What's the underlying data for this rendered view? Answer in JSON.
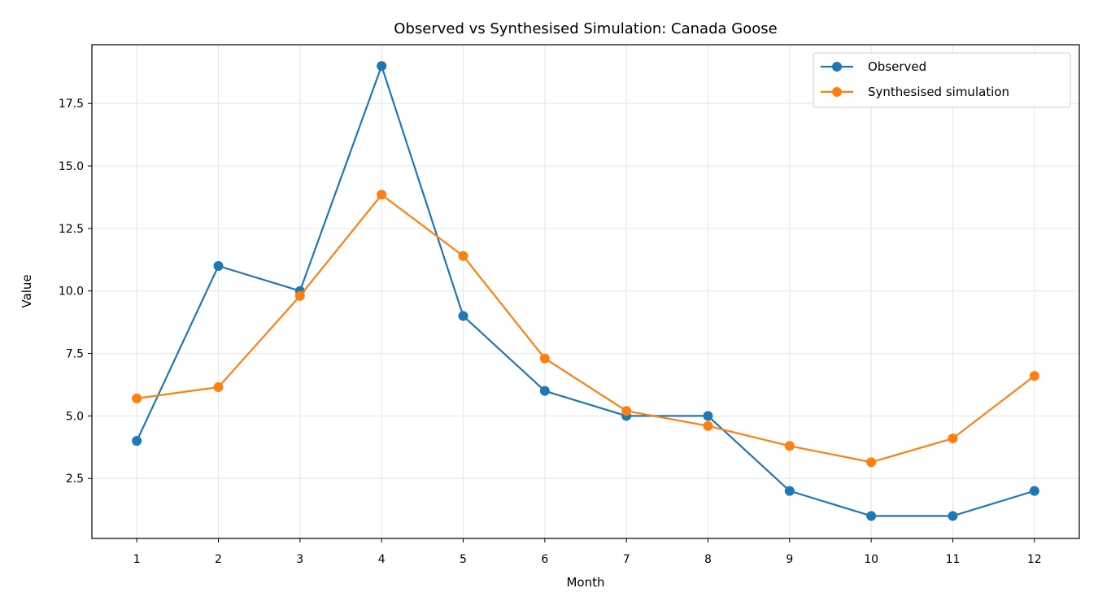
{
  "chart_data": {
    "type": "line",
    "title": "Observed vs Synthesised Simulation: Canada Goose",
    "xlabel": "Month",
    "ylabel": "Value",
    "x": [
      1,
      2,
      3,
      4,
      5,
      6,
      7,
      8,
      9,
      10,
      11,
      12
    ],
    "x_tick_labels": [
      "1",
      "2",
      "3",
      "4",
      "5",
      "6",
      "7",
      "8",
      "9",
      "10",
      "11",
      "12"
    ],
    "y_ticks": [
      2.5,
      5.0,
      7.5,
      10.0,
      12.5,
      15.0,
      17.5
    ],
    "y_tick_labels": [
      "2.5",
      "5.0",
      "7.5",
      "10.0",
      "12.5",
      "15.0",
      "17.5"
    ],
    "xlim": [
      0.45,
      12.55
    ],
    "ylim": [
      0.1,
      19.85
    ],
    "grid": true,
    "legend_position": "top-right",
    "series": [
      {
        "name": "Observed",
        "color": "#1f77b4",
        "values": [
          4,
          11,
          10,
          19,
          9,
          6,
          5,
          5,
          2,
          1,
          1,
          2
        ]
      },
      {
        "name": "Synthesised simulation",
        "color": "#ff7f0e",
        "values": [
          5.7,
          6.15,
          9.8,
          13.85,
          11.4,
          7.3,
          5.2,
          4.6,
          3.8,
          3.15,
          4.1,
          6.6
        ]
      }
    ]
  }
}
